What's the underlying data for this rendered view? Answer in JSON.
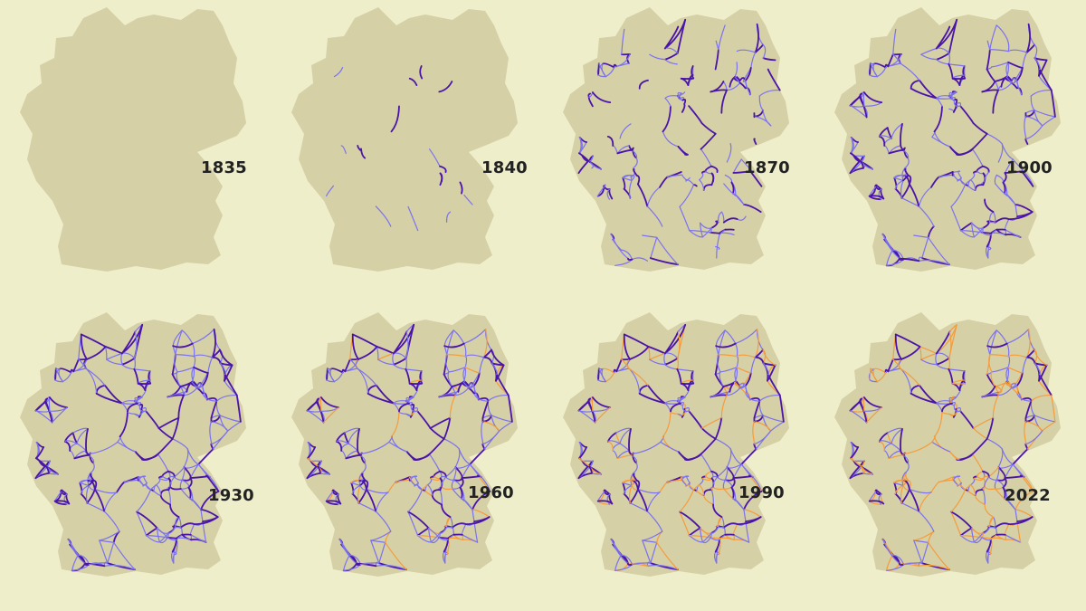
{
  "colors": {
    "background": "#efeecb",
    "land": "#d6d0a7",
    "mainline": "#4a14a8",
    "branch_line": "#7b72f0",
    "closed_line": "#f59c3a",
    "year_text": "#222222"
  },
  "panels": [
    {
      "year": "1835",
      "density": 0.0,
      "closed": 0.0
    },
    {
      "year": "1840",
      "density": 0.04,
      "closed": 0.0
    },
    {
      "year": "1870",
      "density": 0.45,
      "closed": 0.0
    },
    {
      "year": "1900",
      "density": 0.8,
      "closed": 0.0
    },
    {
      "year": "1930",
      "density": 1.0,
      "closed": 0.0
    },
    {
      "year": "1960",
      "density": 1.0,
      "closed": 0.12
    },
    {
      "year": "1990",
      "density": 1.0,
      "closed": 0.28
    },
    {
      "year": "2022",
      "density": 1.0,
      "closed": 0.42
    }
  ]
}
